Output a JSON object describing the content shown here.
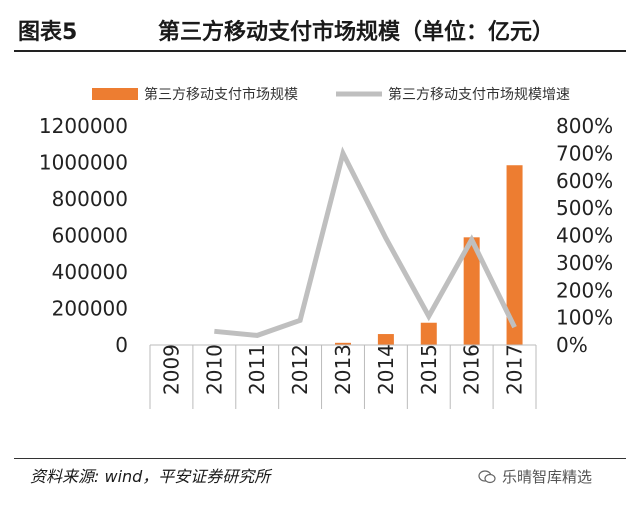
{
  "header": {
    "figure_label": "图表5",
    "title": "第三方移动支付市场规模（单位：亿元）"
  },
  "chart_data": {
    "type": "bar",
    "categories": [
      "2009",
      "2010",
      "2011",
      "2012",
      "2013",
      "2014",
      "2015",
      "2016",
      "2017"
    ],
    "series": [
      {
        "name": "第三方移动支付市场规模",
        "kind": "bar",
        "axis": "left",
        "color": "#ed7d31",
        "values": [
          200,
          600,
          800,
          1500,
          12000,
          60000,
          122000,
          590000,
          985000
        ]
      },
      {
        "name": "第三方移动支付市场规模增速",
        "kind": "line",
        "axis": "right",
        "color": "#bfbfbf",
        "values": [
          null,
          0.5,
          0.35,
          0.9,
          7.0,
          3.9,
          1.05,
          3.85,
          0.65
        ]
      }
    ],
    "y_left": {
      "min": 0,
      "max": 1200000,
      "ticks": [
        0,
        200000,
        400000,
        600000,
        800000,
        1000000,
        1200000
      ],
      "tick_labels": [
        "0",
        "200000",
        "400000",
        "600000",
        "800000",
        "1000000",
        "1200000"
      ]
    },
    "y_right": {
      "min": 0,
      "max": 8,
      "ticks": [
        0,
        1,
        2,
        3,
        4,
        5,
        6,
        7,
        8
      ],
      "tick_labels": [
        "0%",
        "100%",
        "200%",
        "300%",
        "400%",
        "500%",
        "600%",
        "700%",
        "800%"
      ]
    },
    "legend_position": "top",
    "grid": false
  },
  "footer": {
    "source": "资料来源: wind，平安证券研究所",
    "watermark": "乐晴智库精选"
  }
}
